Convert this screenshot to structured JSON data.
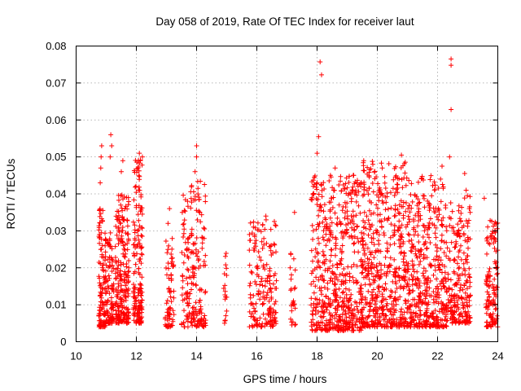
{
  "chart_data": {
    "type": "scatter",
    "title": "Day 058 of 2019, Rate Of TEC Index for receiver laut",
    "xlabel": "GPS time / hours",
    "ylabel": "ROTI / TECUs",
    "xlim": [
      10,
      24
    ],
    "ylim": [
      0,
      0.08
    ],
    "xticks": [
      "10",
      "12",
      "14",
      "16",
      "18",
      "20",
      "22",
      "24"
    ],
    "yticks": [
      "0",
      "0.01",
      "0.02",
      "0.03",
      "0.04",
      "0.05",
      "0.06",
      "0.07",
      "0.08"
    ],
    "grid": true,
    "marker": "+",
    "color": "#ff0000",
    "note": "Dense scatter; clusters summarized as time bands with ROTI ranges",
    "clusters": [
      {
        "x_start": 10.75,
        "x_end": 11.0,
        "y_min": 0.004,
        "y_max": 0.037,
        "count": 130
      },
      {
        "x_start": 11.0,
        "x_end": 11.25,
        "y_min": 0.005,
        "y_max": 0.03,
        "count": 90
      },
      {
        "x_start": 11.3,
        "x_end": 11.75,
        "y_min": 0.005,
        "y_max": 0.04,
        "count": 230
      },
      {
        "x_start": 11.9,
        "x_end": 12.2,
        "y_min": 0.005,
        "y_max": 0.05,
        "count": 170
      },
      {
        "x_start": 12.95,
        "x_end": 13.25,
        "y_min": 0.004,
        "y_max": 0.028,
        "count": 70
      },
      {
        "x_start": 13.5,
        "x_end": 14.3,
        "y_min": 0.004,
        "y_max": 0.044,
        "count": 200
      },
      {
        "x_start": 14.9,
        "x_end": 15.0,
        "y_min": 0.005,
        "y_max": 0.024,
        "count": 18
      },
      {
        "x_start": 15.75,
        "x_end": 16.65,
        "y_min": 0.004,
        "y_max": 0.033,
        "count": 180
      },
      {
        "x_start": 17.1,
        "x_end": 17.3,
        "y_min": 0.004,
        "y_max": 0.025,
        "count": 25
      },
      {
        "x_start": 17.8,
        "x_end": 19.5,
        "y_min": 0.003,
        "y_max": 0.045,
        "count": 560
      },
      {
        "x_start": 19.5,
        "x_end": 21.0,
        "y_min": 0.004,
        "y_max": 0.049,
        "count": 520
      },
      {
        "x_start": 21.0,
        "x_end": 22.3,
        "y_min": 0.004,
        "y_max": 0.045,
        "count": 430
      },
      {
        "x_start": 22.3,
        "x_end": 23.1,
        "y_min": 0.005,
        "y_max": 0.04,
        "count": 230
      },
      {
        "x_start": 23.6,
        "x_end": 24.0,
        "y_min": 0.004,
        "y_max": 0.033,
        "count": 130
      }
    ],
    "outliers": [
      {
        "x": 10.85,
        "y": 0.053
      },
      {
        "x": 10.83,
        "y": 0.05
      },
      {
        "x": 10.82,
        "y": 0.047
      },
      {
        "x": 10.8,
        "y": 0.043
      },
      {
        "x": 11.15,
        "y": 0.056
      },
      {
        "x": 11.18,
        "y": 0.053
      },
      {
        "x": 11.13,
        "y": 0.05
      },
      {
        "x": 11.55,
        "y": 0.049
      },
      {
        "x": 11.5,
        "y": 0.046
      },
      {
        "x": 12.1,
        "y": 0.051
      },
      {
        "x": 12.2,
        "y": 0.05
      },
      {
        "x": 12.05,
        "y": 0.047
      },
      {
        "x": 13.1,
        "y": 0.036
      },
      {
        "x": 13.05,
        "y": 0.032
      },
      {
        "x": 14.0,
        "y": 0.053
      },
      {
        "x": 14.0,
        "y": 0.05
      },
      {
        "x": 13.95,
        "y": 0.046
      },
      {
        "x": 13.7,
        "y": 0.038
      },
      {
        "x": 14.1,
        "y": 0.035
      },
      {
        "x": 16.3,
        "y": 0.034
      },
      {
        "x": 17.25,
        "y": 0.035
      },
      {
        "x": 18.1,
        "y": 0.0757
      },
      {
        "x": 18.15,
        "y": 0.0722
      },
      {
        "x": 18.05,
        "y": 0.0555
      },
      {
        "x": 18.0,
        "y": 0.051
      },
      {
        "x": 18.0,
        "y": 0.043
      },
      {
        "x": 18.6,
        "y": 0.047
      },
      {
        "x": 18.55,
        "y": 0.041
      },
      {
        "x": 19.2,
        "y": 0.045
      },
      {
        "x": 19.85,
        "y": 0.048
      },
      {
        "x": 20.8,
        "y": 0.0505
      },
      {
        "x": 20.85,
        "y": 0.0476
      },
      {
        "x": 22.15,
        "y": 0.0475
      },
      {
        "x": 22.1,
        "y": 0.044
      },
      {
        "x": 22.45,
        "y": 0.0765
      },
      {
        "x": 22.45,
        "y": 0.0748
      },
      {
        "x": 22.45,
        "y": 0.0628
      },
      {
        "x": 22.4,
        "y": 0.05
      },
      {
        "x": 22.9,
        "y": 0.0455
      },
      {
        "x": 22.95,
        "y": 0.041
      },
      {
        "x": 23.55,
        "y": 0.0388
      }
    ]
  }
}
